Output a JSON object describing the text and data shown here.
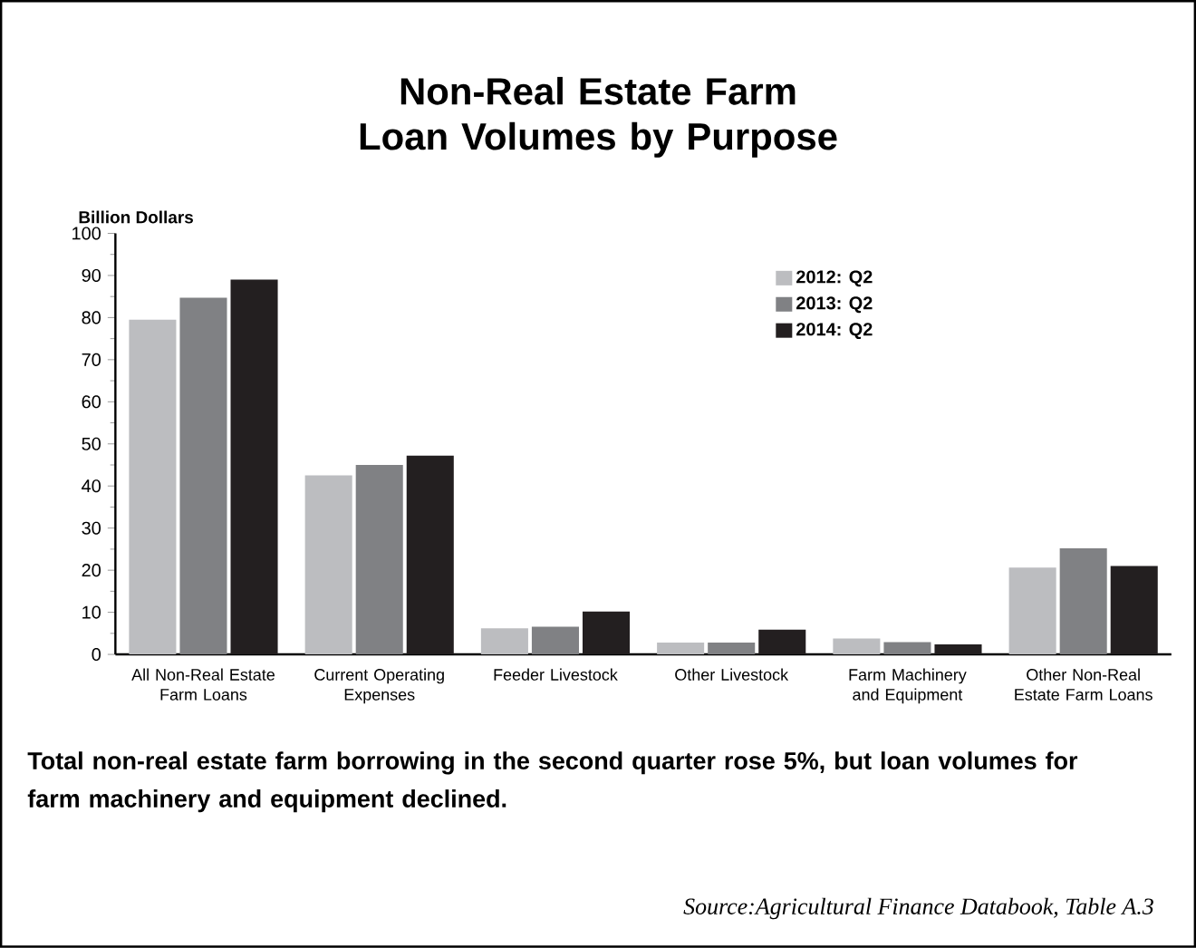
{
  "chart_data": {
    "type": "bar",
    "title": "Non-Real Estate Farm Loan Volumes by Purpose",
    "ylabel": "Billion Dollars",
    "categories": [
      "All Non-Real Estate Farm Loans",
      "Current Operating Expenses",
      "Feeder Livestock",
      "Other Livestock",
      "Farm Machinery and Equipment",
      "Other Non-Real Estate Farm Loans"
    ],
    "series": [
      {
        "name": "2012: Q2",
        "color": "#bcbdc0",
        "values": [
          79.5,
          42.5,
          6.2,
          2.8,
          3.8,
          20.6
        ]
      },
      {
        "name": "2013: Q2",
        "color": "#808184",
        "values": [
          84.7,
          45,
          6.6,
          2.8,
          2.9,
          25.2
        ]
      },
      {
        "name": "2014: Q2",
        "color": "#231f20",
        "values": [
          89,
          47.2,
          10.2,
          5.9,
          2.4,
          21
        ]
      }
    ],
    "ylim": [
      0,
      100
    ],
    "yticks": [
      0,
      10,
      20,
      30,
      40,
      50,
      60,
      70,
      80,
      90,
      100
    ],
    "legend": "top right",
    "annotations": [
      "Total non-real estate farm borrowing in the second quarter rose 5%, but loan volumes for farm machinery and equipment declined.",
      "Source:Agricultural Finance Databook, Table A.3"
    ]
  }
}
